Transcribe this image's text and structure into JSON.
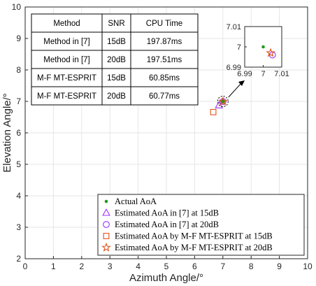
{
  "chart_data": {
    "type": "scatter",
    "xlabel": "Azimuth Angle/°",
    "ylabel": "Elevation Angle/°",
    "xlim": [
      0,
      10
    ],
    "ylim": [
      2,
      10
    ],
    "xticks": [
      "0",
      "1",
      "2",
      "3",
      "4",
      "5",
      "6",
      "7",
      "8",
      "9",
      "10"
    ],
    "yticks": [
      "2",
      "3",
      "4",
      "5",
      "6",
      "7",
      "8",
      "9",
      "10"
    ],
    "grid": true,
    "legend_position": "bottom-right",
    "series": [
      {
        "name": "Actual AoA",
        "marker": "dot",
        "color": "#1a9a1a",
        "x": [
          7.0
        ],
        "y": [
          7.0
        ]
      },
      {
        "name": "Estimated AoA in [7] at 15dB",
        "marker": "triangle",
        "color": "#9b30ff",
        "x": [
          6.86
        ],
        "y": [
          6.87
        ]
      },
      {
        "name": "Estimated AoA in [7] at 20dB",
        "marker": "circle",
        "color": "#9b30ff",
        "x": [
          7.005
        ],
        "y": [
          6.996
        ]
      },
      {
        "name": "Estimated AoA by M-F MT-ESPRIT at 15dB",
        "marker": "square",
        "color": "#e0501a",
        "x": [
          6.66
        ],
        "y": [
          6.66
        ]
      },
      {
        "name": "Estimated AoA by M-F MT-ESPRIT at 20dB",
        "marker": "star",
        "color": "#e0501a",
        "x": [
          7.004
        ],
        "y": [
          6.997
        ]
      }
    ],
    "table": {
      "headers": [
        "Method",
        "SNR",
        "CPU Time"
      ],
      "rows": [
        [
          "Method in [7]",
          "15dB",
          "197.87ms"
        ],
        [
          "Method in [7]",
          "20dB",
          "197.51ms"
        ],
        [
          "M-F MT-ESPRIT",
          "15dB",
          "60.85ms"
        ],
        [
          "M-F MT-ESPRIT",
          "20dB",
          "60.77ms"
        ]
      ]
    },
    "inset": {
      "xlim": [
        6.99,
        7.01
      ],
      "ylim": [
        6.99,
        7.01
      ],
      "xticks": [
        "6.99",
        "7",
        "7.01"
      ],
      "yticks": [
        "6.99",
        "7",
        "7.01"
      ]
    }
  }
}
